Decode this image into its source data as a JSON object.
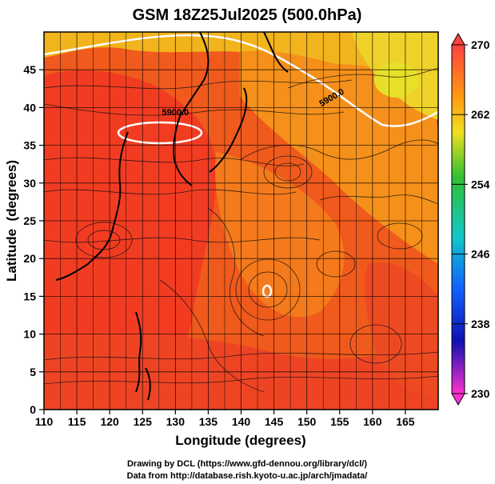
{
  "chart_data": {
    "type": "heatmap",
    "title": "GSM 18Z25Jul2025 (500.0hPa)",
    "xlabel": "Longitude (degrees)",
    "ylabel": "Latitude  (degrees)",
    "xlim": [
      110,
      170
    ],
    "ylim": [
      0,
      50
    ],
    "x_ticks": [
      110,
      115,
      120,
      125,
      130,
      135,
      140,
      145,
      150,
      155,
      160,
      165
    ],
    "y_ticks": [
      0,
      5,
      10,
      15,
      20,
      25,
      30,
      35,
      40,
      45
    ],
    "colorbar": {
      "min": 230,
      "max": 270,
      "ticks": [
        270,
        262,
        254,
        246,
        238,
        230
      ],
      "colors": [
        "#ff3a30",
        "#ff9a10",
        "#f0e020",
        "#30c030",
        "#10c8c8",
        "#1060ff",
        "#1010b0",
        "#ff30d0"
      ]
    },
    "contours": [
      {
        "label": "5900.0",
        "lon": 130,
        "lat": 39
      },
      {
        "label": "5900.0",
        "lon": 154,
        "lat": 41
      }
    ],
    "footer": [
      "Drawing by DCL (https://www.gfd-dennou.org/library/dcl/)",
      "Data from http://database.rish.kyoto-u.ac.jp/arch/jmadata/"
    ]
  }
}
